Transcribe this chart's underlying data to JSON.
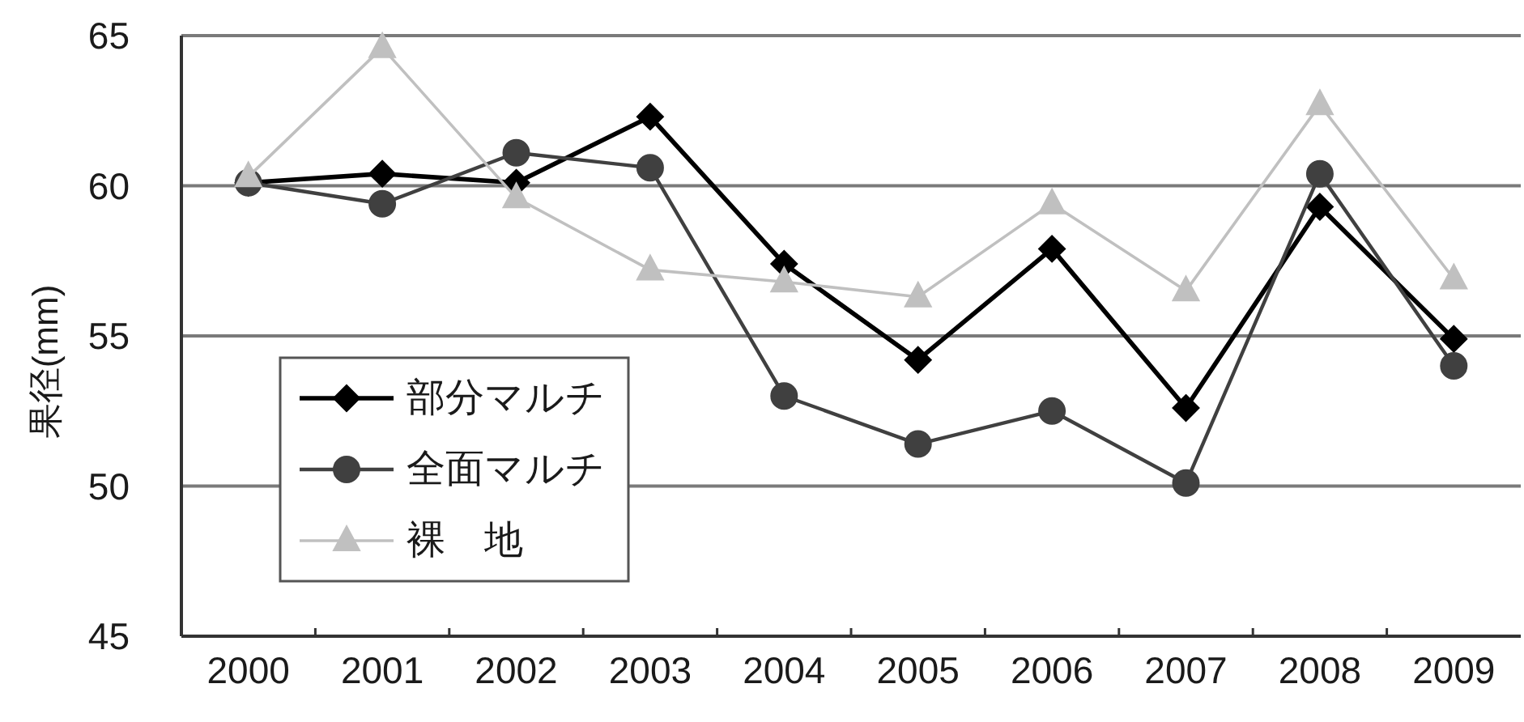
{
  "chart_data": {
    "type": "line",
    "ylabel": "果径(mm)",
    "categories": [
      "2000",
      "2001",
      "2002",
      "2003",
      "2004",
      "2005",
      "2006",
      "2007",
      "2008",
      "2009"
    ],
    "ylim": [
      45,
      65
    ],
    "yticks": [
      45,
      50,
      55,
      60,
      65
    ],
    "grid": "y",
    "legend": "bottom left",
    "series": [
      {
        "name": "部分マルチ",
        "color": "#000000",
        "marker": "diamond",
        "values": [
          60.1,
          60.4,
          60.1,
          62.3,
          57.4,
          54.2,
          57.9,
          52.6,
          59.3,
          54.9
        ]
      },
      {
        "name": "全面マルチ",
        "color": "#404040",
        "marker": "circle",
        "values": [
          60.1,
          59.4,
          61.1,
          60.6,
          53.0,
          51.4,
          52.5,
          50.1,
          60.4,
          54.0
        ]
      },
      {
        "name": "裸　地",
        "color": "#c0c0c0",
        "marker": "triangle",
        "values": [
          60.3,
          64.6,
          59.6,
          57.2,
          56.8,
          56.3,
          59.4,
          56.5,
          62.7,
          56.9
        ]
      }
    ]
  }
}
